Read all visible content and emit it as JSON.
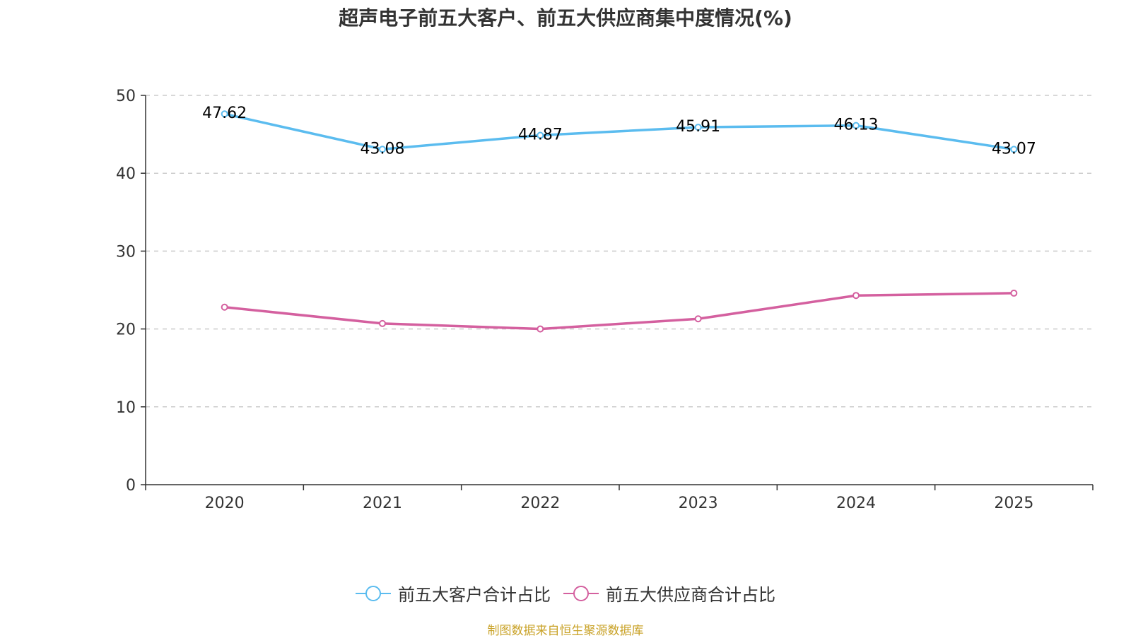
{
  "chart_data": {
    "type": "line",
    "title": "超声电子前五大客户、前五大供应商集中度情况(%)",
    "categories": [
      "2020",
      "2021",
      "2022",
      "2023",
      "2024",
      "2025"
    ],
    "series": [
      {
        "name": "前五大客户合计占比",
        "color": "#5bbcef",
        "values": [
          47.62,
          43.08,
          44.87,
          45.91,
          46.13,
          43.07
        ],
        "show_labels": true
      },
      {
        "name": "前五大供应商合计占比",
        "color": "#d4609f",
        "values": [
          22.8,
          20.7,
          20.0,
          21.3,
          24.3,
          24.6
        ],
        "show_labels": false
      }
    ],
    "ylim": [
      0,
      50
    ],
    "yticks": [
      0,
      10,
      20,
      30,
      40,
      50
    ],
    "grid": true,
    "legend": "bottom-center"
  },
  "source": "制图数据来自恒生聚源数据库"
}
